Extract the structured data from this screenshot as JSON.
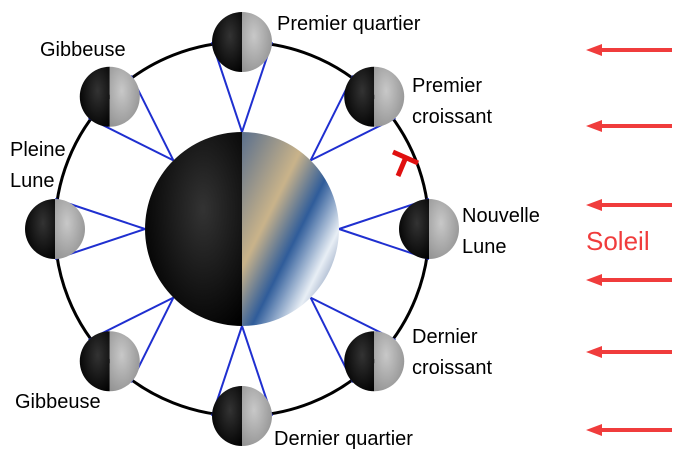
{
  "labels": [
    {
      "lines": [
        "Premier quartier"
      ]
    },
    {
      "lines": [
        "Gibbeuse"
      ]
    },
    {
      "lines": [
        "Premier",
        "croissant"
      ]
    },
    {
      "lines": [
        "Pleine",
        "Lune"
      ]
    },
    {
      "lines": [
        "Nouvelle",
        "Lune"
      ]
    },
    {
      "lines": [
        "Dernier",
        "croissant"
      ]
    },
    {
      "lines": [
        "Gibbeuse"
      ]
    },
    {
      "lines": [
        "Dernier quartier"
      ]
    }
  ],
  "sun": "Soleil"
}
